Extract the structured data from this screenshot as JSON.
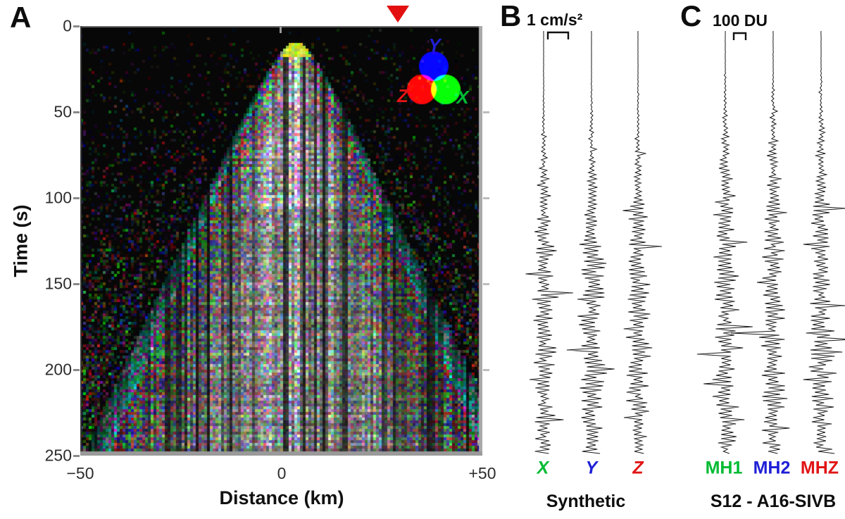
{
  "colors": {
    "x_green": "#00bb33",
    "y_blue": "#1f1fd6",
    "z_red": "#e01515",
    "marker_red": "#e31010",
    "trace_stroke": "#1a1a1a"
  },
  "panelA": {
    "label": "A",
    "ylabel": "Time (s)",
    "xlabel": "Distance (km)",
    "yticks": [
      "0",
      "50",
      "100",
      "150",
      "200",
      "250"
    ],
    "xticks": [
      "−50",
      "0",
      "+50"
    ],
    "legend": {
      "y": "Y",
      "z": "Z",
      "x": "X"
    }
  },
  "panelB": {
    "label": "B",
    "scale_label": "1 cm/s²",
    "trace_labels": [
      "X",
      "Y",
      "Z"
    ],
    "caption": "Synthetic"
  },
  "panelC": {
    "label": "C",
    "scale_label": "100 DU",
    "trace_labels": [
      "MH1",
      "MH2",
      "MHZ"
    ],
    "caption": "S12 - A16-SIVB"
  },
  "chart_data": [
    {
      "panel": "A",
      "type": "heatmap",
      "title": "",
      "xlabel": "Distance (km)",
      "ylabel": "Time (s)",
      "xlim": [
        -50,
        50
      ],
      "ylim": [
        0,
        250
      ],
      "xticks": [
        -50,
        0,
        50
      ],
      "yticks": [
        0,
        50,
        100,
        150,
        200,
        250
      ],
      "grid": false,
      "rgb_channel_map": {
        "red": "Z",
        "green": "X",
        "blue": "Y"
      },
      "source_marker": {
        "symbol": "inverted red triangle",
        "distance_km": 29,
        "time_s": 0
      },
      "cone_apex": {
        "distance_km": 3,
        "time_s": 10
      },
      "description": "RGB-encoded three-component seismic wavefield record section: a cone of scattered energy emerges near 0 km at ~10 s, brightest (whitish) near the apex/center, and expands to nearly the full ±50 km aperture by 250 s; background is black with increasing dim multicolored speckle at later times; RGB color wheel legend (Y=blue, Z=red, X=green) drawn in upper right of the plot."
    },
    {
      "panel": "B",
      "type": "line",
      "title": "Synthetic",
      "scale_bar": "1 cm/s²",
      "orientation": "time runs vertically 0–250 s; amplitude plotted horizontally",
      "traces": [
        {
          "name": "X",
          "label_color": "#00bb33"
        },
        {
          "name": "Y",
          "label_color": "#1f1fd6"
        },
        {
          "name": "Z",
          "label_color": "#e01515"
        }
      ],
      "description": "Three synthetic acceleration seismograms; traces are quiescent for the first ~40 s, an emergent wave packet grows after ~60 s and a strong scattered coda persists to 250 s."
    },
    {
      "panel": "C",
      "type": "line",
      "title": "S12 - A16-SIVB",
      "scale_bar": "100 DU",
      "orientation": "time runs vertically 0–250 s; amplitude plotted horizontally",
      "traces": [
        {
          "name": "MH1",
          "label_color": "#00bb33"
        },
        {
          "name": "MH2",
          "label_color": "#1f1fd6"
        },
        {
          "name": "MHZ",
          "label_color": "#e01515"
        }
      ],
      "description": "Observed Apollo 12 seismograms (digital units) for the A16-SIVB booster impact; emergent onset near ~30 s with a long high-amplitude scattered coda lasting to 250 s, including occasional large spikes."
    }
  ]
}
